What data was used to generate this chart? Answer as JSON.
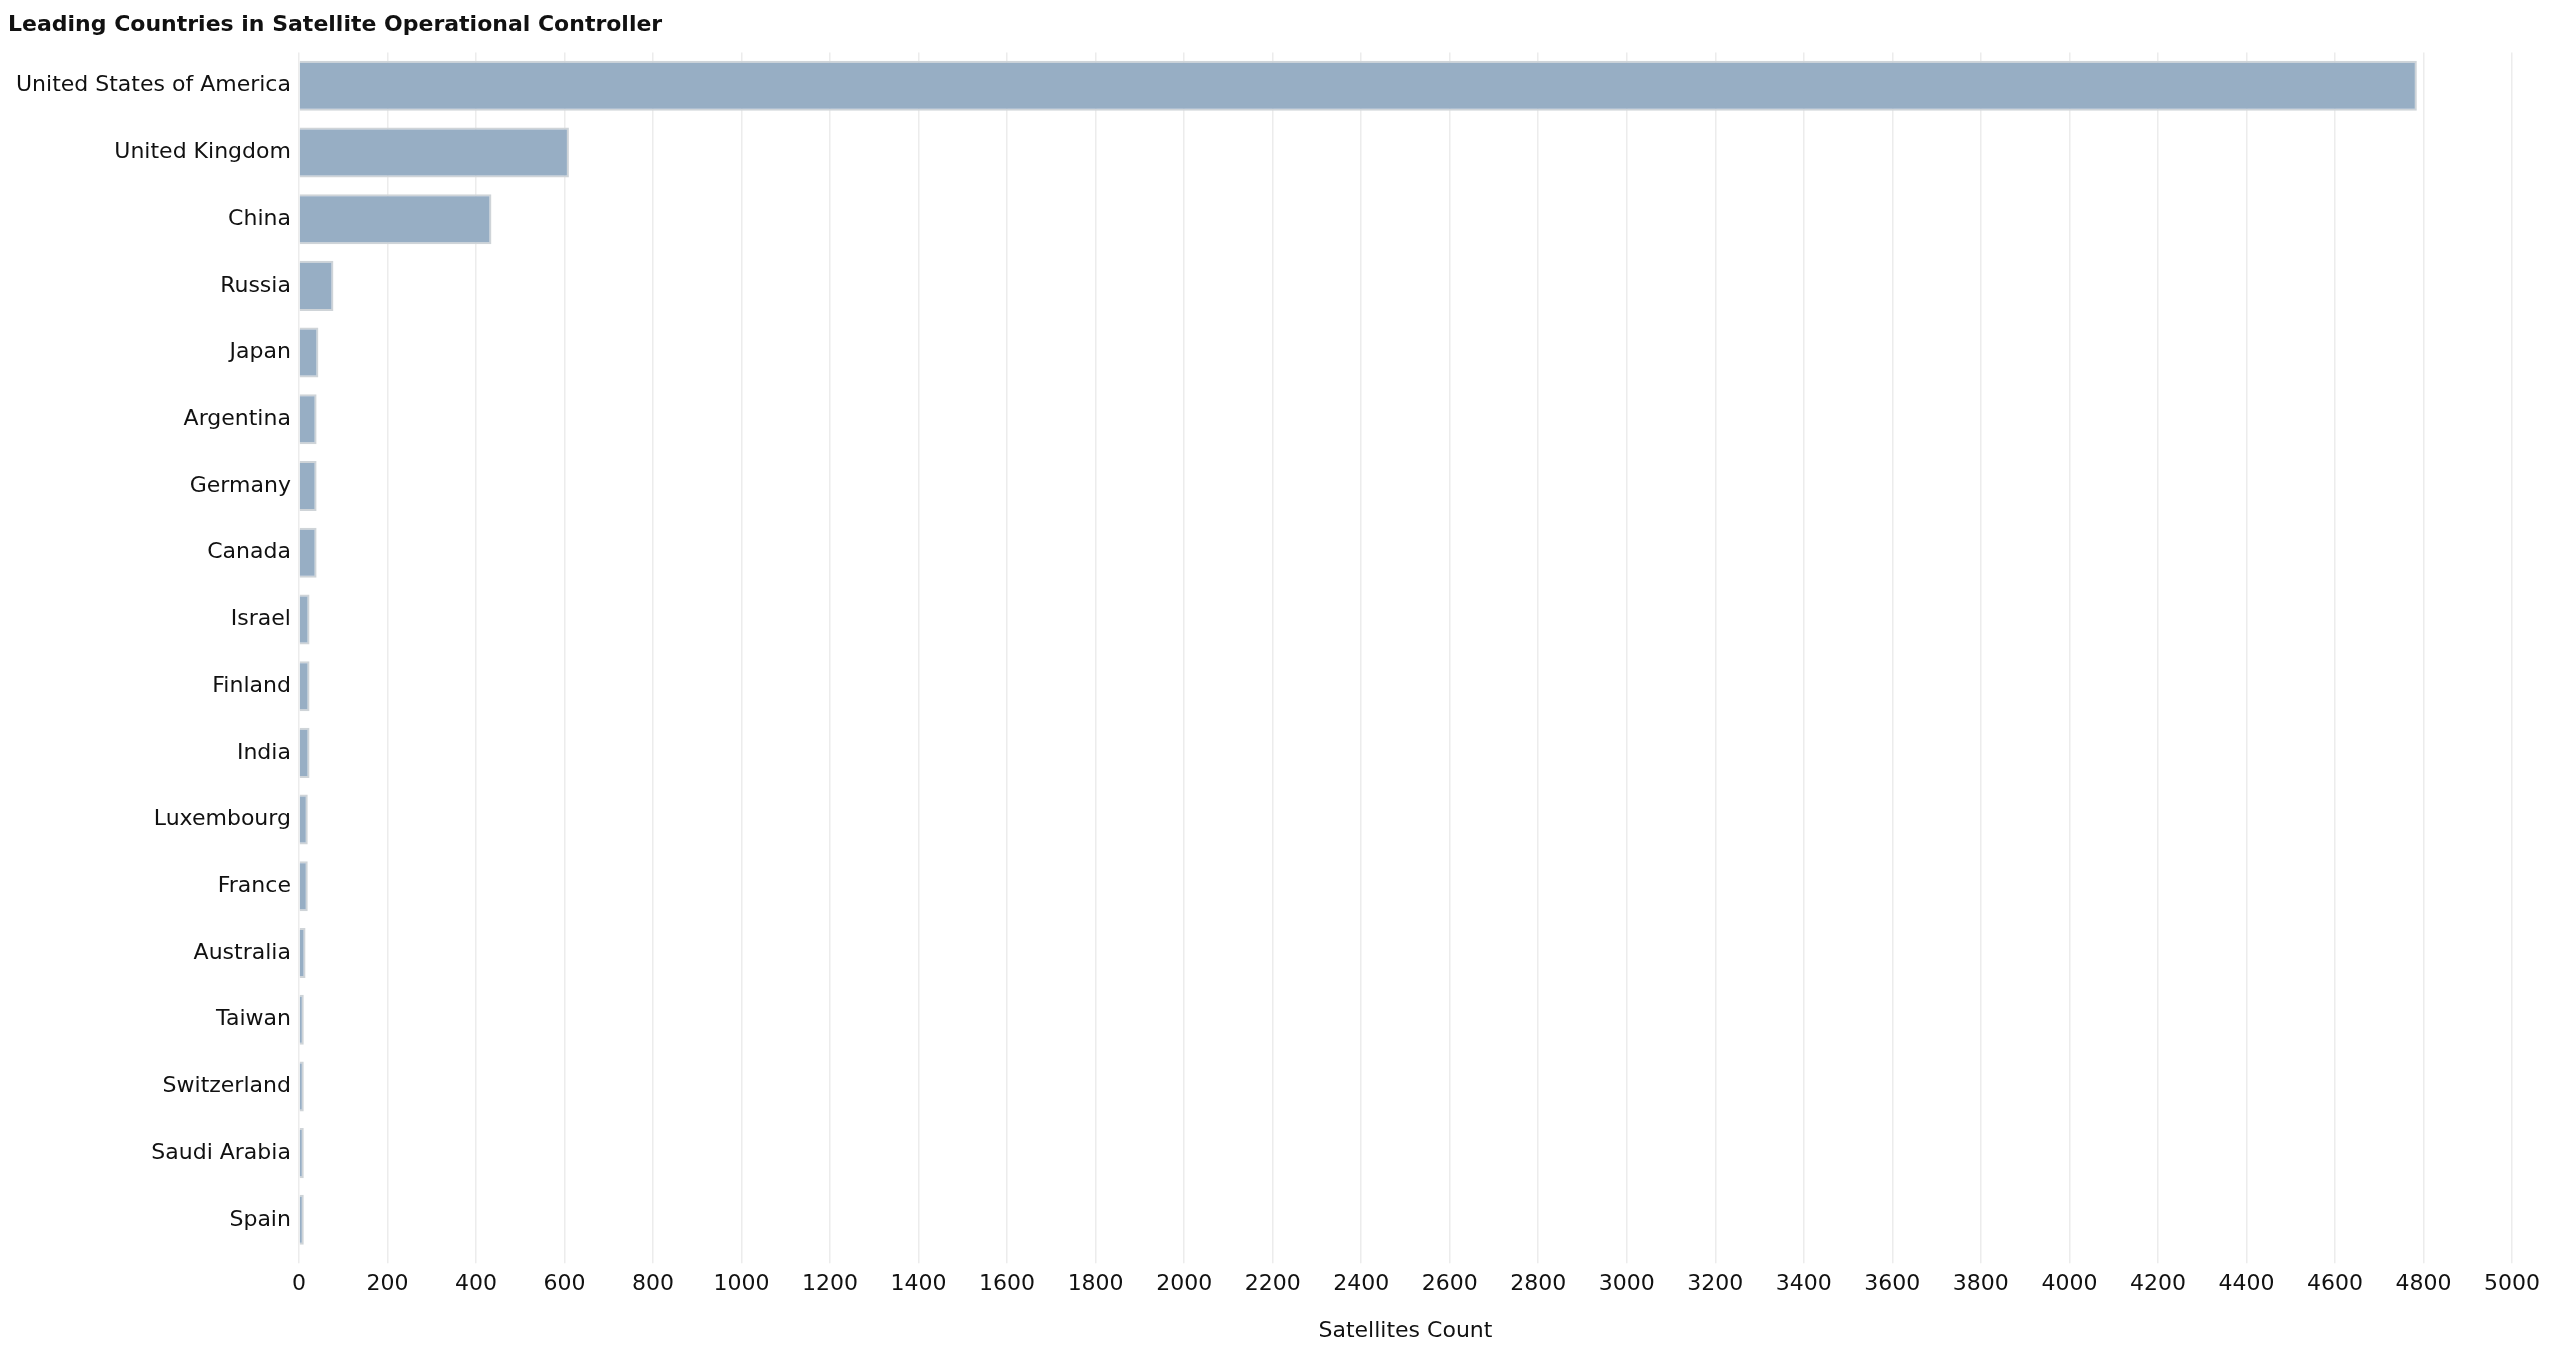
{
  "chart_data": {
    "type": "bar",
    "orientation": "horizontal",
    "title": "Leading Countries in Satellite Operational Controller",
    "xlabel": "Satellites Count",
    "categories": [
      "United States of America",
      "United Kingdom",
      "China",
      "Russia",
      "Japan",
      "Argentina",
      "Germany",
      "Canada",
      "Israel",
      "Finland",
      "India",
      "Luxembourg",
      "France",
      "Australia",
      "Taiwan",
      "Switzerland",
      "Saudi Arabia",
      "Spain"
    ],
    "values": [
      4785,
      610,
      435,
      78,
      44,
      40,
      40,
      40,
      24,
      24,
      24,
      20,
      20,
      15,
      11,
      11,
      11,
      11
    ],
    "color": "#97aec4",
    "xlim": [
      0,
      5000
    ],
    "xticks": [
      0,
      200,
      400,
      600,
      800,
      1000,
      1200,
      1400,
      1600,
      1800,
      2000,
      2200,
      2400,
      2600,
      2800,
      3000,
      3200,
      3400,
      3600,
      3800,
      4000,
      4200,
      4400,
      4600,
      4800,
      5000
    ],
    "grid": "x",
    "legend": false
  }
}
